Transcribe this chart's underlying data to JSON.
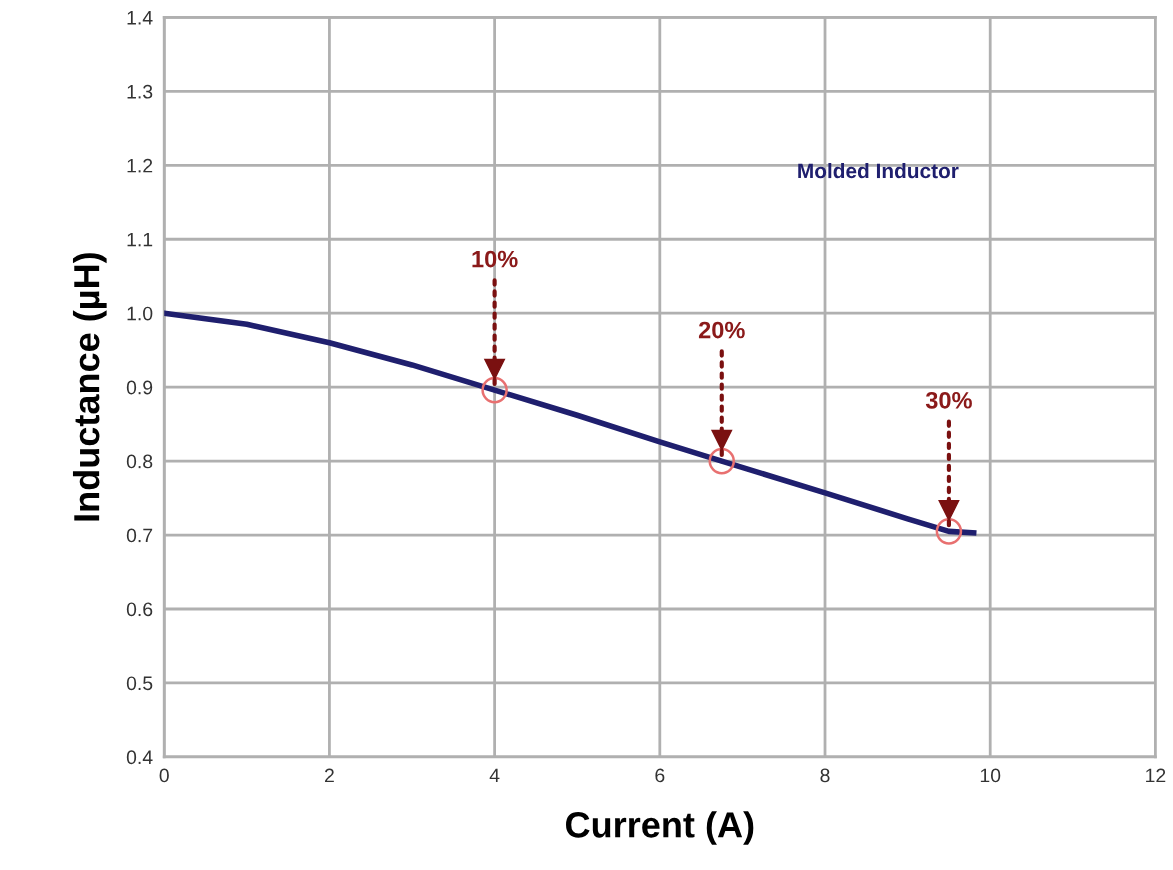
{
  "chart_data": {
    "type": "line",
    "xlabel": "Current (A)",
    "ylabel": "Inductance (µH)",
    "xlim": [
      0,
      12
    ],
    "ylim": [
      0.4,
      1.4
    ],
    "xticks": [
      0,
      2,
      4,
      6,
      8,
      10,
      12
    ],
    "yticks": [
      0.4,
      0.5,
      0.6,
      0.7,
      0.8,
      0.9,
      {
        "value": 1.0,
        "label": "1.0"
      },
      1.1,
      1.2,
      1.3,
      1.4
    ],
    "grid": true,
    "legend": false,
    "series": [
      {
        "name": "Molded Inductor",
        "color": "#1f1f6e",
        "marker": "none",
        "x": [
          0,
          1,
          2,
          3,
          4,
          5,
          6,
          6.75,
          8,
          9,
          9.5,
          9.8
        ],
        "values": [
          1.0,
          0.985,
          0.96,
          0.93,
          0.896,
          0.862,
          0.826,
          0.8,
          0.757,
          0.722,
          0.705,
          0.703
        ]
      },
      {
        "color": "#e87070",
        "type": "scatter",
        "marker": "circle",
        "x": [
          4,
          6.75,
          9.5
        ],
        "values": [
          0.896,
          0.8,
          0.705
        ]
      }
    ],
    "annotations": [
      {
        "text": "10%",
        "x": 4,
        "y": 0.896
      },
      {
        "text": "20%",
        "x": 6.75,
        "y": 0.8
      },
      {
        "text": "30%",
        "x": 9.5,
        "y": 0.705
      }
    ]
  }
}
